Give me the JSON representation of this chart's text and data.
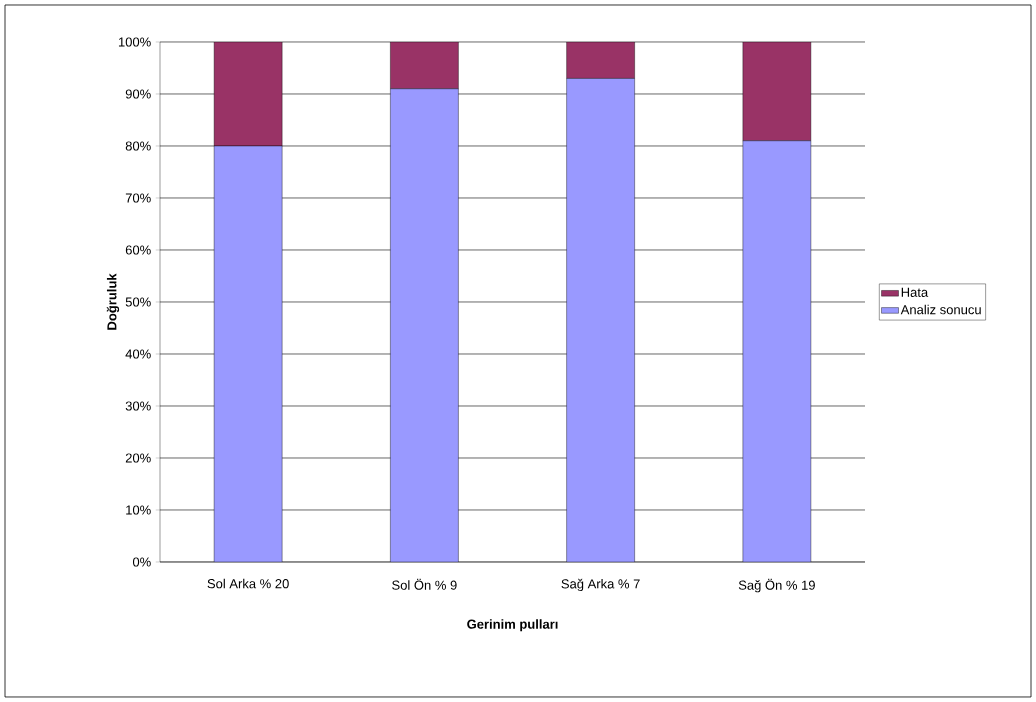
{
  "chart_data": {
    "type": "bar",
    "stacked": true,
    "xlabel": "Gerinim pulları",
    "ylabel": "Doğruluk",
    "categories": [
      "Sol Arka % 20",
      "Sol Ön % 9",
      "Sağ Arka % 7",
      "Sağ Ön % 19"
    ],
    "series": [
      {
        "name": "Analiz sonucu",
        "color": "#9999ff",
        "values": [
          80,
          91,
          93,
          81
        ]
      },
      {
        "name": "Hata",
        "color": "#993366",
        "values": [
          20,
          9,
          7,
          19
        ]
      }
    ],
    "ylim": [
      0,
      100
    ],
    "yticks": [
      {
        "value": 0,
        "label": "0%"
      },
      {
        "value": 10,
        "label": "10%"
      },
      {
        "value": 20,
        "label": "20%"
      },
      {
        "value": 30,
        "label": "30%"
      },
      {
        "value": 40,
        "label": "40%"
      },
      {
        "value": 50,
        "label": "50%"
      },
      {
        "value": 60,
        "label": "60%"
      },
      {
        "value": 70,
        "label": "70%"
      },
      {
        "value": 80,
        "label": "80%"
      },
      {
        "value": 90,
        "label": "90%"
      },
      {
        "value": 100,
        "label": "100%"
      }
    ],
    "grid": "y",
    "legend": "right"
  }
}
